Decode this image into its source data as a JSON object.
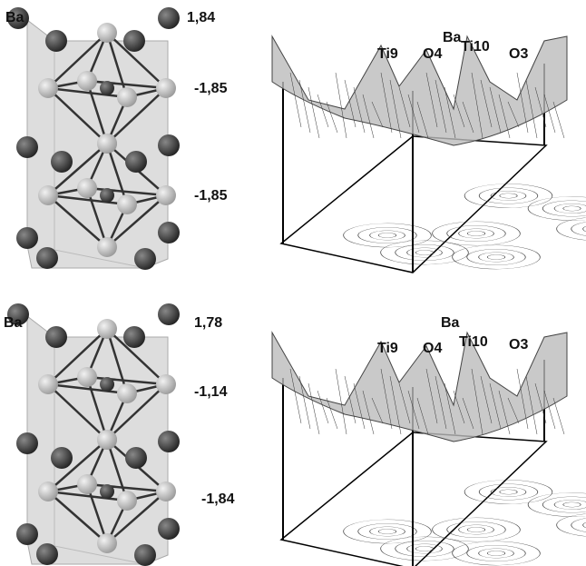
{
  "panels": [
    {
      "structure": {
        "atom": "Ba",
        "charges": [
          "1,84",
          "-1,85",
          "-1,85"
        ]
      },
      "surface": {
        "labels": [
          "Ba",
          "Ti9",
          "O4",
          "Ti10",
          "O3"
        ]
      }
    },
    {
      "structure": {
        "atom": "Ba",
        "charges": [
          "1,78",
          "-1,14",
          "-1,84"
        ]
      },
      "surface": {
        "labels": [
          "Ba",
          "Ti9",
          "O4",
          "Ti10",
          "O3"
        ]
      }
    }
  ]
}
